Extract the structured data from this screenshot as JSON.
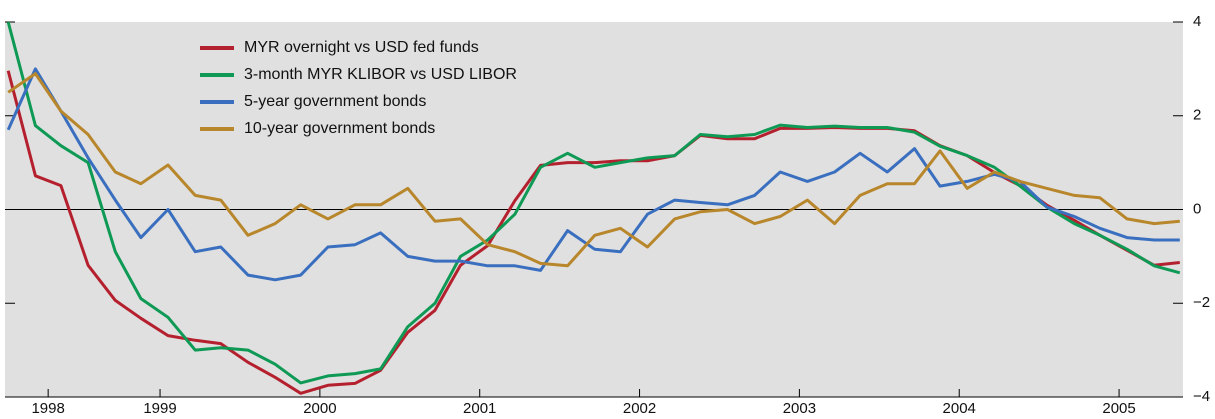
{
  "chart_data": {
    "type": "line",
    "x": [
      1998.55,
      1998.72,
      1998.88,
      1999.05,
      1999.22,
      1999.38,
      1999.55,
      1999.72,
      1999.88,
      2000.05,
      2000.22,
      2000.38,
      2000.55,
      2000.72,
      2000.88,
      2001.05,
      2001.22,
      2001.38,
      2001.55,
      2001.72,
      2001.88,
      2002.05,
      2002.22,
      2002.38,
      2002.55,
      2002.72,
      2002.88,
      2003.05,
      2003.22,
      2003.38,
      2003.55,
      2003.72,
      2003.88,
      2004.05,
      2004.22,
      2004.38,
      2004.55,
      2004.72,
      2004.88,
      2005.05,
      2005.22,
      2005.38,
      2005.55,
      2005.72,
      2005.88
    ],
    "series": [
      {
        "name": "MYR overnight vs USD fed funds",
        "color": "#b5202e",
        "values": [
          2.96,
          0.72,
          0.51,
          -1.19,
          -1.94,
          -2.32,
          -2.69,
          -2.79,
          -2.86,
          -3.26,
          -3.58,
          -3.92,
          -3.75,
          -3.71,
          -3.43,
          -2.62,
          -2.15,
          -1.19,
          -0.77,
          0.19,
          0.94,
          1.0,
          1.0,
          1.04,
          1.04,
          1.15,
          1.58,
          1.51,
          1.51,
          1.73,
          1.73,
          1.75,
          1.73,
          1.73,
          1.68,
          1.36,
          1.15,
          0.79,
          0.51,
          0.09,
          -0.23,
          -0.55,
          -0.87,
          -1.19,
          -1.13
        ]
      },
      {
        "name": "3-month MYR KLIBOR vs USD LIBOR",
        "color": "#0e9a55",
        "values": [
          4.0,
          1.79,
          1.36,
          1.0,
          -0.9,
          -1.9,
          -2.3,
          -3.0,
          -2.95,
          -3.0,
          -3.3,
          -3.7,
          -3.55,
          -3.5,
          -3.4,
          -2.5,
          -2.0,
          -1.0,
          -0.65,
          -0.1,
          0.9,
          1.2,
          0.9,
          1.0,
          1.1,
          1.15,
          1.6,
          1.55,
          1.6,
          1.8,
          1.75,
          1.78,
          1.75,
          1.75,
          1.65,
          1.35,
          1.15,
          0.9,
          0.5,
          0.05,
          -0.3,
          -0.55,
          -0.85,
          -1.2,
          -1.35
        ]
      },
      {
        "name": "5-year government bonds",
        "color": "#3a6fbf",
        "values": [
          1.7,
          3.0,
          2.1,
          1.1,
          0.2,
          -0.6,
          0.0,
          -0.9,
          -0.8,
          -1.4,
          -1.5,
          -1.4,
          -0.8,
          -0.75,
          -0.5,
          -1.0,
          -1.1,
          -1.1,
          -1.2,
          -1.2,
          -1.3,
          -0.45,
          -0.85,
          -0.9,
          -0.1,
          0.2,
          0.15,
          0.1,
          0.3,
          0.8,
          0.6,
          0.8,
          1.2,
          0.8,
          1.3,
          0.5,
          0.6,
          0.75,
          0.6,
          0.05,
          -0.15,
          -0.4,
          -0.6,
          -0.65,
          -0.65
        ]
      },
      {
        "name": "10-year government bonds",
        "color": "#b8862b",
        "values": [
          2.5,
          2.9,
          2.1,
          1.6,
          0.8,
          0.55,
          0.95,
          0.3,
          0.2,
          -0.55,
          -0.3,
          0.1,
          -0.2,
          0.1,
          0.1,
          0.45,
          -0.25,
          -0.2,
          -0.75,
          -0.9,
          -1.15,
          -1.2,
          -0.55,
          -0.4,
          -0.8,
          -0.2,
          -0.05,
          0.0,
          -0.3,
          -0.15,
          0.2,
          -0.3,
          0.3,
          0.55,
          0.55,
          1.25,
          0.45,
          0.8,
          0.6,
          0.45,
          0.3,
          0.25,
          -0.2,
          -0.3,
          -0.25
        ]
      }
    ],
    "xlim": [
      1998.53,
      2005.9
    ],
    "xticks": [
      {
        "value": 1998.8,
        "label": "1998"
      },
      {
        "value": 1999.5,
        "label": "1999"
      },
      {
        "value": 2000.5,
        "label": "2000"
      },
      {
        "value": 2001.5,
        "label": "2001"
      },
      {
        "value": 2002.5,
        "label": "2002"
      },
      {
        "value": 2003.5,
        "label": "2003"
      },
      {
        "value": 2004.5,
        "label": "2004"
      },
      {
        "value": 2005.5,
        "label": "2005"
      }
    ],
    "ylim": [
      -4,
      4
    ],
    "yticks": [
      {
        "value": -4,
        "label": "−4"
      },
      {
        "value": -2,
        "label": "−2"
      },
      0,
      2,
      4
    ],
    "legend": "upper left"
  }
}
